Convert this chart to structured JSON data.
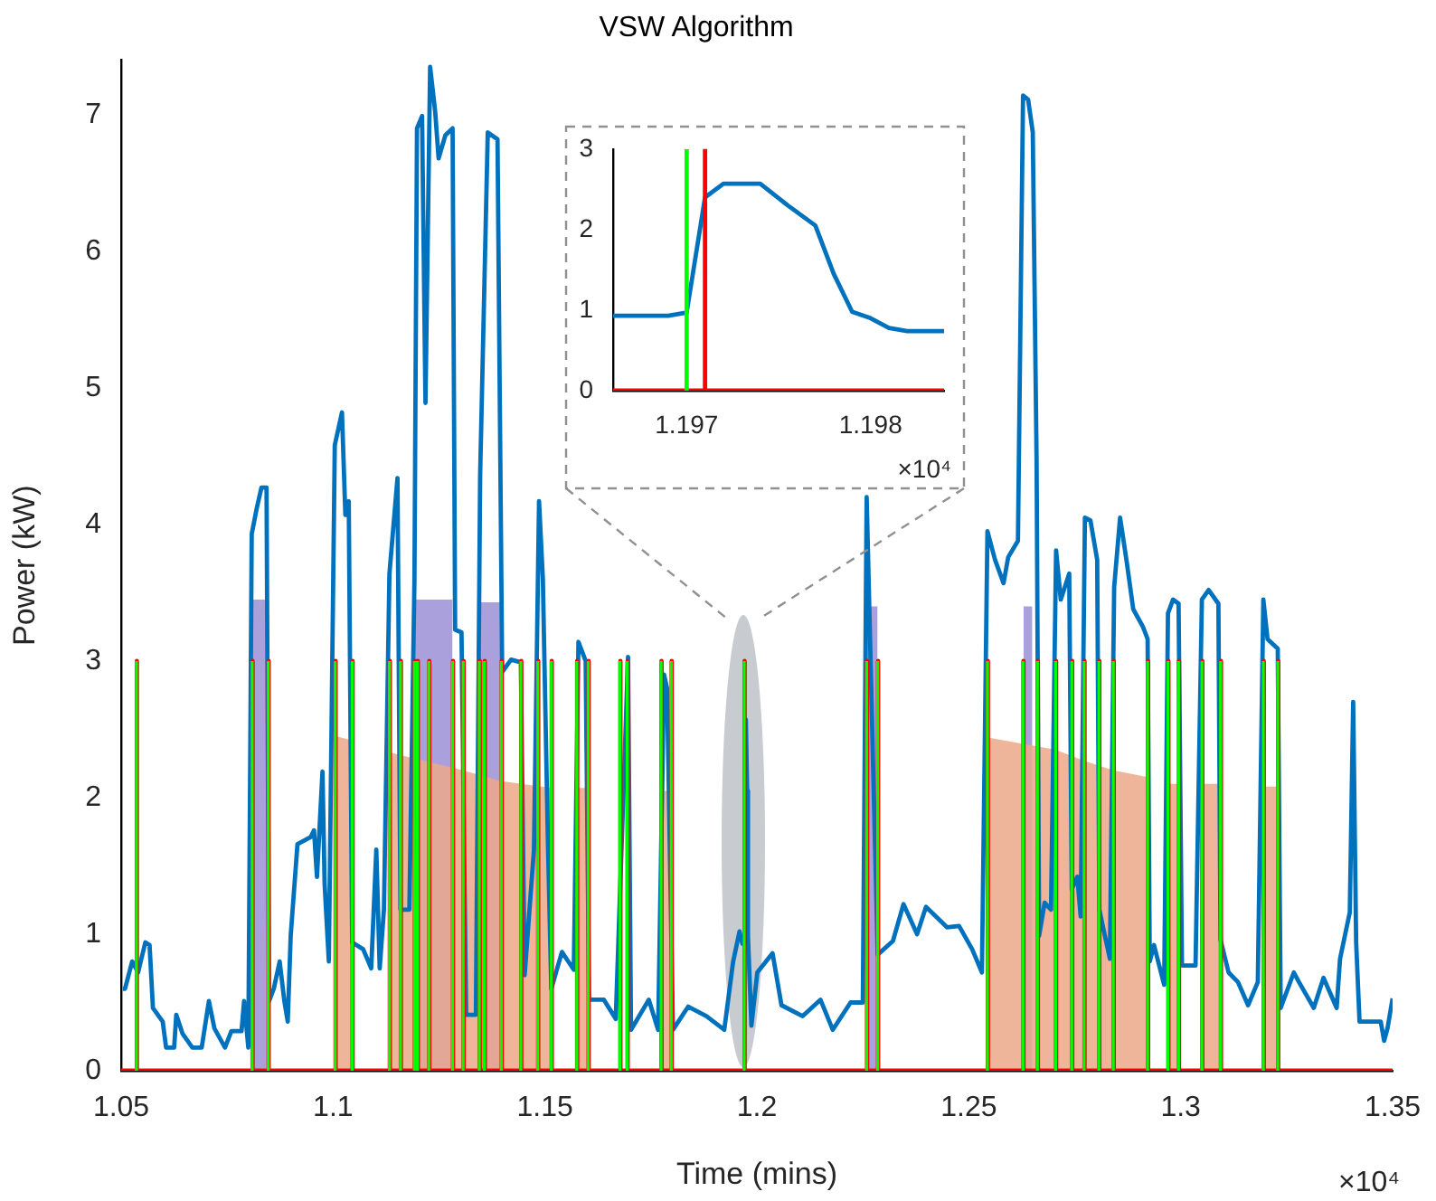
{
  "chart_data": [
    {
      "type": "line",
      "title": "VSW Algorithm",
      "xlabel": "Time (mins)",
      "ylabel": "Power (kW)",
      "xlim": [
        1.05,
        1.35
      ],
      "xticks": [
        1.05,
        1.1,
        1.15,
        1.2,
        1.25,
        1.3,
        1.35
      ],
      "ylim": [
        0,
        7.4
      ],
      "yticks": [
        0,
        1,
        2,
        3,
        4,
        5,
        6,
        7
      ],
      "annotations": [
        "×10⁴"
      ],
      "series": [
        {
          "type": "area",
          "color": "#9b8fd6",
          "x": [
            1.0809,
            1.0848,
            null,
            1.1193,
            1.1282,
            null,
            1.1346,
            1.1397,
            null,
            1.226,
            1.2285,
            null,
            1.2629,
            1.265
          ],
          "values": [
            3.45,
            3.45,
            null,
            3.45,
            3.45,
            null,
            3.43,
            3.43,
            null,
            3.4,
            3.4,
            null,
            3.4,
            3.4
          ]
        },
        {
          "type": "area",
          "color": "#eca88a",
          "x": [
            1.1006,
            1.1044,
            null,
            1.1134,
            1.12,
            1.1282,
            1.1397,
            1.1515,
            null,
            1.1576,
            1.1602,
            null,
            1.1775,
            1.1798,
            null,
            1.2545,
            1.2705,
            1.2772,
            1.2841,
            1.2922,
            null,
            1.2971,
            1.2995,
            null,
            1.3051,
            1.3094,
            null,
            1.3196,
            1.3229
          ],
          "values": [
            2.45,
            2.42,
            null,
            2.33,
            2.28,
            2.22,
            2.12,
            2.07,
            null,
            2.07,
            2.07,
            null,
            2.05,
            2.05,
            null,
            2.44,
            2.35,
            2.27,
            2.2,
            2.15,
            null,
            2.1,
            2.1,
            null,
            2.1,
            2.1,
            null,
            2.08,
            2.08
          ]
        },
        {
          "type": "line",
          "color": "#0072bd",
          "x": [
            1.0504,
            1.0509,
            1.0526,
            1.054,
            1.0557,
            1.0567,
            1.0575,
            1.0598,
            1.0606,
            1.0625,
            1.063,
            1.0645,
            1.0668,
            1.069,
            1.0707,
            1.072,
            1.0745,
            1.076,
            1.0784,
            1.079,
            1.08,
            1.0808,
            1.082,
            1.0831,
            1.0843,
            1.0849,
            1.086,
            1.0874,
            1.0885,
            1.0893,
            1.09,
            1.0916,
            1.0947,
            1.0955,
            1.0962,
            1.0975,
            1.098,
            1.099,
            1.1004,
            1.1021,
            1.1029,
            1.1037,
            1.1045,
            1.1071,
            1.109,
            1.1102,
            1.111,
            1.112,
            1.1133,
            1.1152,
            1.1159,
            1.118,
            1.1192,
            1.1198,
            1.121,
            1.1218,
            1.1229,
            1.1241,
            1.1249,
            1.1265,
            1.1282,
            1.1288,
            1.1303,
            1.1314,
            1.1337,
            1.1347,
            1.1365,
            1.1388,
            1.1399,
            1.142,
            1.1443,
            1.1452,
            1.1474,
            1.1486,
            1.1495,
            1.1507,
            1.1515,
            1.154,
            1.1568,
            1.1579,
            1.1596,
            1.1604,
            1.1639,
            1.1667,
            1.1696,
            1.1703,
            1.1745,
            1.1767,
            1.1781,
            1.1788,
            1.1802,
            1.1838,
            1.1881,
            1.1923,
            1.1944,
            1.1959,
            1.1966,
            1.1969,
            1.197,
            1.1972,
            1.1974,
            1.1977,
            1.1979,
            1.1982,
            1.1987,
            1.2001,
            1.2037,
            1.2058,
            1.2108,
            1.215,
            1.2179,
            1.2221,
            1.225,
            1.2259,
            1.2285,
            1.2321,
            1.2346,
            1.2378,
            1.2399,
            1.2449,
            1.2477,
            1.2508,
            1.2531,
            1.2544,
            1.2562,
            1.2582,
            1.2593,
            1.2616,
            1.2628,
            1.264,
            1.2651,
            1.266,
            1.2666,
            1.2679,
            1.2694,
            1.2706,
            1.2717,
            1.2737,
            1.2743,
            1.2756,
            1.2764,
            1.2774,
            1.2787,
            1.2803,
            1.2808,
            1.2821,
            1.2833,
            1.2843,
            1.2857,
            1.2872,
            1.2888,
            1.2911,
            1.2922,
            1.2927,
            1.2937,
            1.2961,
            1.297,
            1.2982,
            1.2995,
            1.3003,
            1.3035,
            1.305,
            1.3066,
            1.3089,
            1.3094,
            1.3113,
            1.3135,
            1.3159,
            1.3182,
            1.3195,
            1.3205,
            1.3229,
            1.3236,
            1.3267,
            1.3279,
            1.3314,
            1.3337,
            1.3368,
            1.3376,
            1.3399,
            1.3407,
            1.3414,
            1.3422,
            1.3472,
            1.348,
            1.3488,
            1.35
          ],
          "values": [
            0.6,
            0.6,
            0.8,
            0.72,
            0.94,
            0.92,
            0.46,
            0.36,
            0.17,
            0.17,
            0.41,
            0.27,
            0.17,
            0.17,
            0.51,
            0.31,
            0.17,
            0.29,
            0.29,
            0.51,
            0.17,
            3.93,
            4.12,
            4.27,
            4.27,
            0.51,
            0.6,
            0.8,
            0.51,
            0.36,
            0.99,
            1.66,
            1.71,
            1.76,
            1.42,
            2.19,
            1.37,
            0.8,
            4.58,
            4.82,
            4.07,
            4.17,
            0.94,
            0.89,
            0.75,
            1.62,
            0.75,
            1.18,
            3.64,
            4.34,
            1.18,
            1.18,
            3.59,
            6.9,
            6.99,
            4.89,
            7.35,
            7.02,
            6.68,
            6.85,
            6.9,
            3.23,
            3.21,
            0.41,
            0.41,
            4.36,
            6.87,
            6.82,
            2.92,
            3.01,
            2.99,
            0.7,
            1.62,
            4.17,
            3.6,
            1.66,
            0.6,
            0.87,
            0.74,
            3.14,
            3.0,
            0.52,
            0.52,
            0.38,
            3.03,
            0.3,
            0.52,
            0.3,
            2.9,
            2.8,
            0.3,
            0.47,
            0.4,
            0.3,
            0.8,
            1.02,
            0.93,
            0.93,
            0.97,
            2.57,
            2.57,
            2.05,
            0.98,
            0.74,
            0.33,
            0.72,
            0.86,
            0.48,
            0.4,
            0.52,
            0.3,
            0.5,
            0.5,
            4.2,
            0.85,
            0.95,
            1.22,
            1.0,
            1.2,
            1.05,
            1.06,
            0.89,
            0.72,
            3.95,
            3.74,
            3.57,
            3.76,
            3.88,
            7.14,
            7.11,
            6.87,
            4.46,
            0.99,
            1.23,
            1.18,
            3.81,
            3.45,
            3.64,
            1.33,
            1.42,
            1.13,
            4.05,
            4.03,
            3.74,
            1.18,
            0.99,
            0.82,
            3.54,
            4.05,
            3.74,
            3.38,
            3.25,
            3.16,
            0.8,
            0.92,
            0.63,
            3.35,
            3.45,
            3.42,
            0.77,
            0.77,
            3.45,
            3.52,
            3.42,
            0.96,
            0.72,
            0.65,
            0.48,
            0.65,
            3.45,
            3.16,
            3.09,
            0.46,
            0.72,
            0.65,
            0.46,
            0.68,
            0.46,
            0.82,
            1.16,
            2.7,
            0.94,
            0.36,
            0.36,
            0.22,
            0.31,
            0.53
          ]
        },
        {
          "type": "line",
          "color": "#ff0000",
          "x": [
            1.05,
            1.0537,
            1.0537,
            1.0537,
            1.081,
            1.081,
            1.081,
            1.0848,
            1.0848,
            1.0848,
            1.1006,
            1.1006,
            1.1006,
            1.1046,
            1.1046,
            1.1046,
            1.1134,
            1.1134,
            1.1134,
            1.116,
            1.116,
            1.116,
            1.1193,
            1.1193,
            1.1193,
            1.12,
            1.12,
            1.12,
            1.1227,
            1.1227,
            1.1227,
            1.1283,
            1.1283,
            1.1283,
            1.1308,
            1.1308,
            1.1308,
            1.1346,
            1.1346,
            1.1346,
            1.1358,
            1.1358,
            1.1358,
            1.1398,
            1.1398,
            1.1398,
            1.1444,
            1.1444,
            1.1444,
            1.1484,
            1.1484,
            1.1484,
            1.1516,
            1.1516,
            1.1516,
            1.1576,
            1.1576,
            1.1576,
            1.1603,
            1.1603,
            1.1603,
            1.1678,
            1.1678,
            1.1678,
            1.1695,
            1.1695,
            1.1695,
            1.1775,
            1.1775,
            1.1775,
            1.1799,
            1.1799,
            1.1799,
            1.1971,
            1.1971,
            1.1971,
            1.226,
            1.226,
            1.226,
            1.2286,
            1.2286,
            1.2286,
            1.2545,
            1.2545,
            1.2545,
            1.2629,
            1.2629,
            1.2629,
            1.2663,
            1.2663,
            1.2663,
            1.2706,
            1.2706,
            1.2706,
            1.2744,
            1.2744,
            1.2744,
            1.2773,
            1.2773,
            1.2773,
            1.2808,
            1.2808,
            1.2808,
            1.2842,
            1.2842,
            1.2842,
            1.2923,
            1.2923,
            1.2923,
            1.2971,
            1.2971,
            1.2971,
            1.2996,
            1.2996,
            1.2996,
            1.3051,
            1.3051,
            1.3051,
            1.3095,
            1.3095,
            1.3095,
            1.3196,
            1.3196,
            1.3196,
            1.323,
            1.323,
            1.323,
            1.35
          ],
          "values": [
            0,
            0,
            3,
            0,
            0,
            3,
            0,
            0,
            3,
            0,
            0,
            3,
            0,
            0,
            3,
            0,
            0,
            3,
            0,
            0,
            3,
            0,
            0,
            3,
            0,
            0,
            3,
            0,
            0,
            3,
            0,
            0,
            3,
            0,
            0,
            3,
            0,
            0,
            3,
            0,
            0,
            3,
            0,
            0,
            3,
            0,
            0,
            3,
            0,
            0,
            3,
            0,
            0,
            3,
            0,
            0,
            3,
            0,
            0,
            3,
            0,
            0,
            3,
            0,
            0,
            3,
            0,
            0,
            3,
            0,
            0,
            3,
            0,
            0,
            3,
            0,
            0,
            3,
            0,
            0,
            3,
            0,
            0,
            3,
            0,
            0,
            3,
            0,
            0,
            3,
            0,
            0,
            3,
            0,
            0,
            3,
            0,
            0,
            3,
            0,
            0,
            3,
            0,
            0,
            3,
            0,
            0,
            3,
            0,
            0,
            3,
            0,
            0,
            3,
            0,
            0,
            3,
            0,
            0,
            3,
            0,
            0,
            3,
            0,
            0,
            3,
            0,
            0
          ]
        },
        {
          "type": "line",
          "color": "#00ff00",
          "x": [
            1.0536,
            1.0536,
            null,
            1.0809,
            1.0809,
            null,
            1.0847,
            1.0847,
            null,
            1.1005,
            1.1005,
            null,
            1.1045,
            1.1045,
            null,
            1.1133,
            1.1133,
            null,
            1.1159,
            1.1159,
            null,
            1.1192,
            1.1192,
            null,
            1.1199,
            1.1199,
            null,
            1.1226,
            1.1226,
            null,
            1.1282,
            1.1282,
            null,
            1.1307,
            1.1307,
            null,
            1.1345,
            1.1345,
            null,
            1.1357,
            1.1357,
            null,
            1.1397,
            1.1397,
            null,
            1.1443,
            1.1443,
            null,
            1.1483,
            1.1483,
            null,
            1.1515,
            1.1515,
            null,
            1.1575,
            1.1575,
            null,
            1.1602,
            1.1602,
            null,
            1.1677,
            1.1677,
            null,
            1.1694,
            1.1694,
            null,
            1.1774,
            1.1774,
            null,
            1.1798,
            1.1798,
            null,
            1.197,
            1.197,
            null,
            1.2259,
            1.2259,
            null,
            1.2285,
            1.2285,
            null,
            1.2544,
            1.2544,
            null,
            1.2628,
            1.2628,
            null,
            1.2662,
            1.2662,
            null,
            1.2705,
            1.2705,
            null,
            1.2743,
            1.2743,
            null,
            1.2772,
            1.2772,
            null,
            1.2807,
            1.2807,
            null,
            1.2841,
            1.2841,
            null,
            1.2922,
            1.2922,
            null,
            1.297,
            1.297,
            null,
            1.2995,
            1.2995,
            null,
            1.305,
            1.305,
            null,
            1.3094,
            1.3094,
            null,
            1.3195,
            1.3195,
            null,
            1.3229,
            1.3229,
            null
          ],
          "values": [
            0,
            3,
            null,
            0,
            3,
            null,
            0,
            3,
            null,
            0,
            3,
            null,
            0,
            3,
            null,
            0,
            3,
            null,
            0,
            3,
            null,
            0,
            3,
            null,
            0,
            3,
            null,
            0,
            3,
            null,
            0,
            3,
            null,
            0,
            3,
            null,
            0,
            3,
            null,
            0,
            3,
            null,
            0,
            3,
            null,
            0,
            3,
            null,
            0,
            3,
            null,
            0,
            3,
            null,
            0,
            3,
            null,
            0,
            3,
            null,
            0,
            3,
            null,
            0,
            3,
            null,
            0,
            3,
            null,
            0,
            3,
            null,
            0,
            3,
            null,
            0,
            3,
            null,
            0,
            3,
            null,
            0,
            3,
            null,
            0,
            3,
            null,
            0,
            3,
            null,
            0,
            3,
            null,
            0,
            3,
            null,
            0,
            3,
            null,
            0,
            3,
            null,
            0,
            3,
            null,
            0,
            3,
            null,
            0,
            3,
            null,
            0,
            3,
            null,
            0,
            3,
            null,
            0,
            3,
            null,
            0,
            3,
            null,
            0,
            3,
            null
          ]
        }
      ]
    },
    {
      "type": "line",
      "xlim": [
        1.1966,
        1.1984
      ],
      "xticks": [
        1.197,
        1.198
      ],
      "ylim": [
        0,
        3
      ],
      "yticks": [
        0,
        1,
        2,
        3
      ],
      "annotations": [
        "×10⁴"
      ],
      "series": [
        {
          "type": "line",
          "color": "#0072bd",
          "x": [
            1.1966,
            1.1969,
            1.197,
            1.1971,
            1.1972,
            1.1974,
            1.19755,
            1.1977,
            1.1978,
            1.1979,
            1.198,
            1.1981,
            1.1982,
            1.1984
          ],
          "values": [
            0.93,
            0.93,
            0.97,
            2.4,
            2.57,
            2.57,
            2.3,
            2.05,
            1.45,
            0.98,
            0.9,
            0.78,
            0.74,
            0.74
          ]
        },
        {
          "type": "line",
          "color": "#ff0000",
          "x": [
            1.1966,
            1.1971,
            1.1971,
            1.1971,
            1.1984
          ],
          "values": [
            0,
            0,
            3,
            0,
            0
          ]
        },
        {
          "type": "line",
          "color": "#00ff00",
          "x": [
            1.197,
            1.197
          ],
          "values": [
            0,
            3
          ]
        }
      ]
    }
  ]
}
